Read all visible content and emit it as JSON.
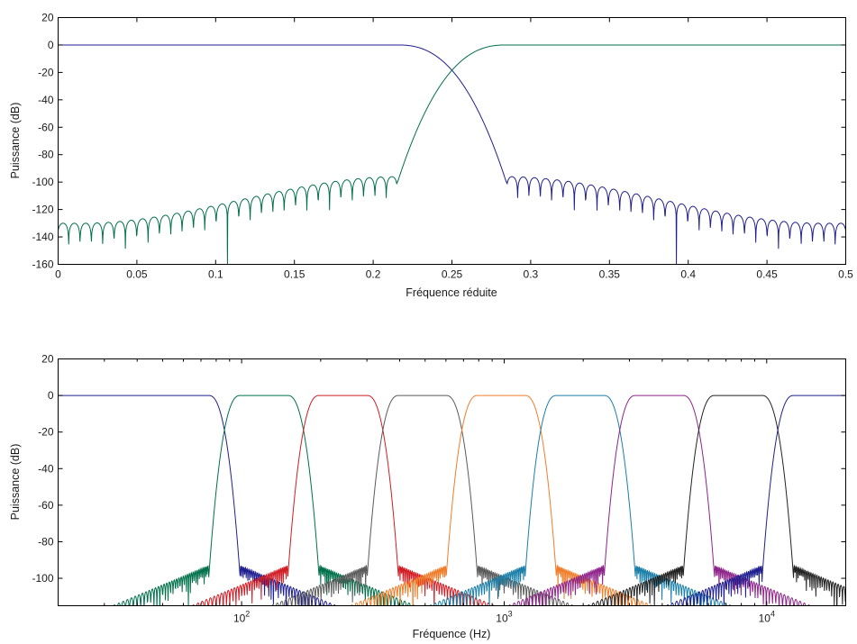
{
  "chart_data": [
    {
      "type": "line",
      "xlabel": "Fréquence réduite",
      "ylabel": "Puissance (dB)",
      "xlim": [
        0,
        0.5
      ],
      "ylim": [
        -160,
        20
      ],
      "x_ticks": [
        0,
        0.05,
        0.1,
        0.15,
        0.2,
        0.25,
        0.3,
        0.35,
        0.4,
        0.45,
        0.5
      ],
      "x_tick_labels": [
        "0",
        "0.05",
        "0.1",
        "0.15",
        "0.2",
        "0.25",
        "0.3",
        "0.35",
        "0.4",
        "0.45",
        "0.5"
      ],
      "y_ticks": [
        20,
        0,
        -20,
        -40,
        -60,
        -80,
        -100,
        -120,
        -140,
        -160
      ],
      "y_tick_labels": [
        "20",
        "0",
        "-20",
        "-40",
        "-60",
        "-80",
        "-100",
        "-120",
        "-140",
        "-160"
      ],
      "grid": false,
      "series": [
        {
          "color": "#1f1f8f",
          "kind": "lowpass",
          "edge": 0.2155,
          "cutoff": 0.2845,
          "sidelobe_db": [
            -96,
            -130
          ]
        },
        {
          "color": "#00704a",
          "kind": "highpass",
          "edge": 0.2845,
          "cutoff": 0.2155,
          "sidelobe_db": [
            -96,
            -130
          ]
        }
      ]
    },
    {
      "type": "line",
      "x_scale": "log",
      "xlabel": "Fréquence (Hz)",
      "ylabel": "Puissance (dB)",
      "xlim": [
        20,
        20000
      ],
      "ylim": [
        -115,
        20
      ],
      "x_ticks": [
        100,
        1000,
        10000
      ],
      "x_tick_labels": [
        {
          "base": "10",
          "exp": "2"
        },
        {
          "base": "10",
          "exp": "3"
        },
        {
          "base": "10",
          "exp": "4"
        }
      ],
      "y_ticks": [
        20,
        0,
        -20,
        -40,
        -60,
        -80,
        -100
      ],
      "y_tick_labels": [
        "20",
        "0",
        "-20",
        "-40",
        "-60",
        "-80",
        "-100"
      ],
      "grid": false,
      "bands": [
        {
          "color": "#1f1f8f",
          "lo": null,
          "hi": 86
        },
        {
          "color": "#00704a",
          "lo": 86,
          "hi": 172
        },
        {
          "color": "#d11c24",
          "lo": 172,
          "hi": 345
        },
        {
          "color": "#5a5a5a",
          "lo": 345,
          "hi": 690
        },
        {
          "color": "#f07d2a",
          "lo": 690,
          "hi": 1378
        },
        {
          "color": "#1a7fa8",
          "lo": 1378,
          "hi": 2756
        },
        {
          "color": "#8e248a",
          "lo": 2756,
          "hi": 5513
        },
        {
          "color": "#222222",
          "lo": 5513,
          "hi": 11025
        },
        {
          "color": "#1f1f8f",
          "lo": 11025,
          "hi": null
        }
      ]
    }
  ]
}
